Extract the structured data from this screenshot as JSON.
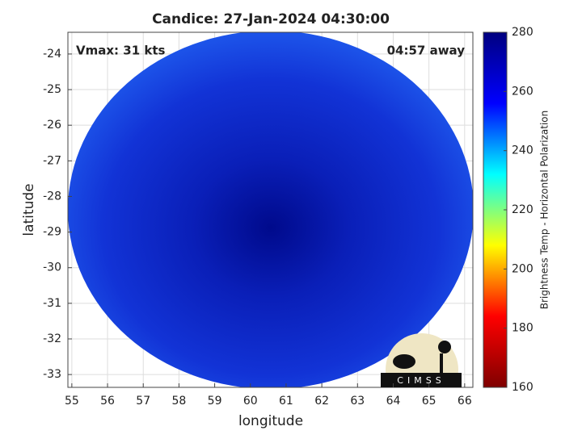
{
  "chart_data": {
    "type": "image-map",
    "title": "Candice: 27-Jan-2024 04:30:00",
    "xlabel": "longitude",
    "ylabel": "latitude",
    "xlim": [
      54.89,
      66.23
    ],
    "xticks": [
      55,
      56,
      57,
      58,
      59,
      60,
      61,
      62,
      63,
      64,
      65,
      66
    ],
    "ylim": [
      -33.36,
      -23.39
    ],
    "yticks": [
      -33,
      -32,
      -31,
      -30,
      -29,
      -28,
      -27,
      -26,
      -25,
      -24
    ],
    "grid": true,
    "annotations": {
      "left": "Vmax: 31 kts",
      "right": "04:57 away"
    },
    "logo": "CIMSS",
    "colorbar": {
      "label": "Brightness Temp - Horizontal Polarization",
      "clim": [
        160,
        280
      ],
      "ticks": [
        160,
        180,
        200,
        220,
        240,
        260,
        280
      ],
      "colormap": "jet"
    }
  }
}
